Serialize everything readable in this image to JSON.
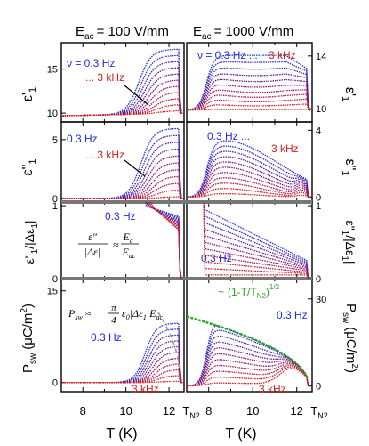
{
  "chart_data": {
    "type": "line",
    "x_label": "T (K)",
    "x_ticks": [
      "8",
      "10",
      "12"
    ],
    "special_x_tick": {
      "main": "T",
      "sub": "N2"
    },
    "columns": [
      {
        "header": {
          "main": "E",
          "sub": "ac",
          "rest": "= 100 V/mm"
        },
        "xlim": [
          7,
          12.7
        ]
      },
      {
        "header": {
          "main": "E",
          "sub": "ac",
          "rest": "= 1000 V/mm"
        },
        "xlim": [
          7,
          12.7
        ]
      }
    ],
    "rows": [
      {
        "id": "eps1",
        "ylabel": {
          "main": "ε'",
          "sub": "1"
        },
        "ylim_left": [
          9,
          18
        ],
        "ylim_right": [
          9,
          15
        ],
        "yticks_left": [
          "10",
          "15"
        ],
        "yticks_right": [
          "10",
          "14"
        ],
        "annotations_left": [
          {
            "text": "ν = 0.3 Hz",
            "color": "blue"
          },
          {
            "text": "... 3 kHz",
            "color": "red"
          }
        ],
        "annotations_right": [
          {
            "text": "ν = 0.3 Hz ...",
            "color": "blue"
          },
          {
            "text": "3 kHz",
            "color": "red"
          }
        ]
      },
      {
        "id": "eps2",
        "ylabel": {
          "main": "ε\"",
          "sub": "1"
        },
        "ylim_left": [
          -0.3,
          6.5
        ],
        "ylim_right": [
          -0.3,
          4.5
        ],
        "yticks_left": [
          "0",
          "5"
        ],
        "yticks_right": [
          "0",
          "4"
        ],
        "annotations_left": [
          {
            "text": "0.3 Hz",
            "color": "blue"
          },
          {
            "text": "... 3 kHz",
            "color": "red"
          }
        ],
        "annotations_right": [
          {
            "text": "0.3 Hz ...",
            "color": "blue"
          },
          {
            "text": "3 kHz",
            "color": "red"
          }
        ]
      },
      {
        "id": "ratio",
        "ylabel": {
          "main": "ε\"",
          "sub": "1",
          "rest": "/|Δε",
          "sub2": "1",
          "end": "|"
        },
        "ylim_left": [
          0,
          1.05
        ],
        "ylim_right": [
          0,
          1.05
        ],
        "yticks_left": [
          "0",
          "1"
        ],
        "yticks_right": [
          "0",
          "1"
        ],
        "annotations_left": [
          {
            "text": "0.3 Hz",
            "color": "blue"
          }
        ],
        "annotations_right": [
          {
            "text": "0.3 Hz",
            "color": "blue"
          }
        ],
        "formula": {
          "lhs_num": "ε\"",
          "lhs_den": "|Δε|",
          "approx": "≈",
          "rhs_num": "E",
          "rhs_num_sub": "c",
          "rhs_den": "E",
          "rhs_den_sub": "ac"
        }
      },
      {
        "id": "psw",
        "ylabel": {
          "main": "P",
          "sub": "sw",
          "rest": "(μC/m",
          "sup": "2",
          "end": ")"
        },
        "ylim_left": [
          -1.5,
          17
        ],
        "ylim_right": [
          -2,
          37
        ],
        "yticks_left": [
          "0",
          "15"
        ],
        "yticks_right": [
          "0",
          "30"
        ],
        "annotations_left": [
          {
            "text": "0.3 Hz",
            "color": "blue"
          },
          {
            "text": "3 kHz",
            "color": "red"
          }
        ],
        "annotations_right": [
          {
            "text": "(1-T/T",
            "sub": "N2",
            "end": ")",
            "sup": "1/2",
            "prefix": "~",
            "color": "green"
          },
          {
            "text": "0.3 Hz",
            "color": "blue"
          },
          {
            "text": "3 kHz",
            "color": "red"
          }
        ],
        "formula": {
          "lhs": "P",
          "lhs_sub": "sw",
          "approx": "≈",
          "frac_num": "π",
          "frac_den": "4",
          "rhs": "ε",
          "rhs_sub": "0",
          "rhs_rest": "|Δε",
          "rhs_sub2": "1",
          "rhs_end": "|E",
          "rhs_sub3": "ac"
        }
      }
    ],
    "series_range": {
      "from": "0.3 Hz",
      "to": "3 kHz",
      "color_from": "#1f2fd6",
      "color_to": "#d61f1f"
    },
    "fit_color": "#2aa82a",
    "ref_line_color": "#999999"
  }
}
